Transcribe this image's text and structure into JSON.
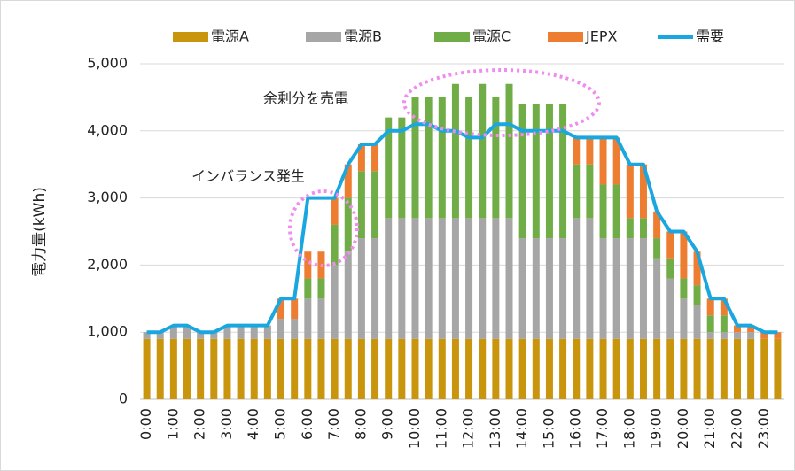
{
  "chart_data": {
    "type": "stacked_bar_line",
    "y_label": "電力量(kWh)",
    "annotations": [
      "余剰分を売電",
      "インバランス発生"
    ],
    "categories": [
      "0:00",
      null,
      "1:00",
      null,
      "2:00",
      null,
      "3:00",
      null,
      "4:00",
      null,
      "5:00",
      null,
      "6:00",
      null,
      "7:00",
      null,
      "8:00",
      null,
      "9:00",
      null,
      "10:00",
      null,
      "11:00",
      null,
      "12:00",
      null,
      "13:00",
      null,
      "14:00",
      null,
      "15:00",
      null,
      "16:00",
      null,
      "17:00",
      null,
      "18:00",
      null,
      "19:00",
      null,
      "20:00",
      null,
      "21:00",
      null,
      "22:00",
      null,
      "23:00",
      null
    ],
    "series": [
      {
        "name": "電源A",
        "color": "#c9950c",
        "kind": "bar",
        "values": [
          900,
          900,
          900,
          900,
          900,
          900,
          900,
          900,
          900,
          900,
          900,
          900,
          900,
          900,
          900,
          900,
          900,
          900,
          900,
          900,
          900,
          900,
          900,
          900,
          900,
          900,
          900,
          900,
          900,
          900,
          900,
          900,
          900,
          900,
          900,
          900,
          900,
          900,
          900,
          900,
          900,
          900,
          900,
          900,
          900,
          900,
          900,
          900
        ]
      },
      {
        "name": "電源B",
        "color": "#a6a6a6",
        "kind": "bar",
        "values": [
          100,
          100,
          200,
          200,
          100,
          100,
          200,
          200,
          200,
          200,
          300,
          300,
          600,
          600,
          1100,
          1300,
          1500,
          1500,
          1800,
          1800,
          1800,
          1800,
          1800,
          1800,
          1800,
          1800,
          1800,
          1800,
          1500,
          1500,
          1500,
          1500,
          1800,
          1800,
          1500,
          1500,
          1500,
          1500,
          1200,
          900,
          600,
          500,
          100,
          100,
          100,
          100,
          0,
          0
        ]
      },
      {
        "name": "電源C",
        "color": "#70ad47",
        "kind": "bar",
        "values": [
          0,
          0,
          0,
          0,
          0,
          0,
          0,
          0,
          0,
          0,
          0,
          0,
          300,
          300,
          600,
          800,
          1000,
          1000,
          1500,
          1500,
          1800,
          1800,
          1800,
          2000,
          1800,
          2000,
          1800,
          2000,
          2000,
          2000,
          2000,
          2000,
          800,
          800,
          800,
          800,
          300,
          300,
          300,
          300,
          300,
          300,
          250,
          250,
          0,
          0,
          0,
          0
        ]
      },
      {
        "name": "JEPX",
        "color": "#ed7d31",
        "kind": "bar",
        "values": [
          0,
          0,
          0,
          0,
          0,
          0,
          0,
          0,
          0,
          0,
          300,
          300,
          400,
          400,
          400,
          500,
          400,
          400,
          0,
          0,
          0,
          0,
          0,
          0,
          0,
          0,
          0,
          0,
          0,
          0,
          0,
          0,
          400,
          400,
          700,
          700,
          800,
          800,
          400,
          400,
          700,
          500,
          250,
          250,
          100,
          100,
          100,
          100
        ]
      },
      {
        "name": "需要",
        "color": "#1aa7e0",
        "kind": "line",
        "values": [
          1000,
          1000,
          1100,
          1100,
          1000,
          1000,
          1100,
          1100,
          1100,
          1100,
          1500,
          1500,
          3000,
          3000,
          3000,
          3500,
          3800,
          3800,
          4000,
          4000,
          4100,
          4100,
          4000,
          4000,
          3900,
          3900,
          4100,
          4100,
          4000,
          4000,
          4000,
          4000,
          3900,
          3900,
          3900,
          3900,
          3500,
          3500,
          2800,
          2500,
          2500,
          2200,
          1500,
          1500,
          1100,
          1100,
          1000,
          1000
        ]
      }
    ],
    "ylim": [
      0,
      5000
    ],
    "yticks": [
      0,
      {
        "value": 1000,
        "label": "1,000"
      },
      {
        "value": 2000,
        "label": "2,000"
      },
      {
        "value": 3000,
        "label": "3,000"
      },
      {
        "value": 4000,
        "label": "4,000"
      },
      {
        "value": 5000,
        "label": "5,000"
      }
    ],
    "grid": true
  }
}
